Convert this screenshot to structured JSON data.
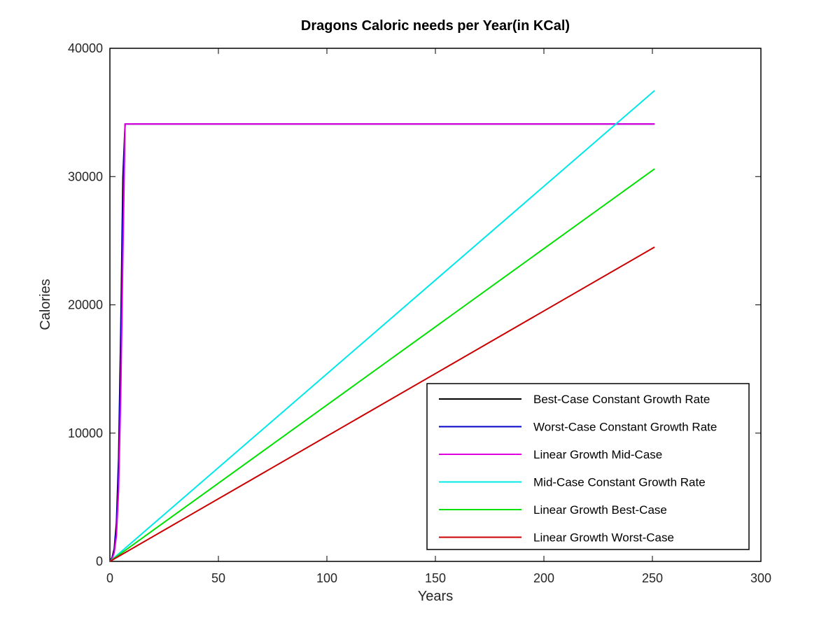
{
  "chart_data": {
    "type": "line",
    "title": "Dragons Caloric needs per Year(in  KCal)",
    "xlabel": "Years",
    "ylabel": "Calories",
    "xlim": [
      0,
      300
    ],
    "ylim": [
      0,
      40000
    ],
    "xticks": [
      0,
      50,
      100,
      150,
      200,
      250,
      300
    ],
    "yticks": [
      0,
      10000,
      20000,
      30000,
      40000
    ],
    "grid": false,
    "legend_position": "bottom-right",
    "series": [
      {
        "name": "Best-Case Constant Growth Rate",
        "color": "#000000",
        "x": [
          0,
          1,
          2,
          3,
          4,
          5,
          6,
          7,
          251
        ],
        "y": [
          0,
          300,
          1000,
          3000,
          8000,
          18000,
          30000,
          34100,
          34100
        ]
      },
      {
        "name": "Worst-Case Constant Growth Rate",
        "color": "#0000c8",
        "x": [
          0,
          1,
          2,
          3,
          4,
          5,
          6,
          7,
          251
        ],
        "y": [
          0,
          250,
          800,
          2500,
          7000,
          16000,
          28000,
          34100,
          34100
        ]
      },
      {
        "name": "Linear Growth Mid-Case",
        "color": "#e000e0",
        "x": [
          0,
          1,
          2,
          3,
          4,
          5,
          6,
          7,
          251
        ],
        "y": [
          0,
          200,
          700,
          2000,
          5500,
          13000,
          24000,
          34100,
          34100
        ]
      },
      {
        "name": "Mid-Case Constant Growth Rate",
        "color": "#00e8e8",
        "x": [
          0,
          251
        ],
        "y": [
          0,
          36700
        ]
      },
      {
        "name": "Linear Growth Best-Case",
        "color": "#00e000",
        "x": [
          0,
          251
        ],
        "y": [
          0,
          30600
        ]
      },
      {
        "name": "Linear Growth Worst-Case",
        "color": "#cc0000",
        "x": [
          0,
          251
        ],
        "y": [
          0,
          24500
        ]
      }
    ]
  }
}
